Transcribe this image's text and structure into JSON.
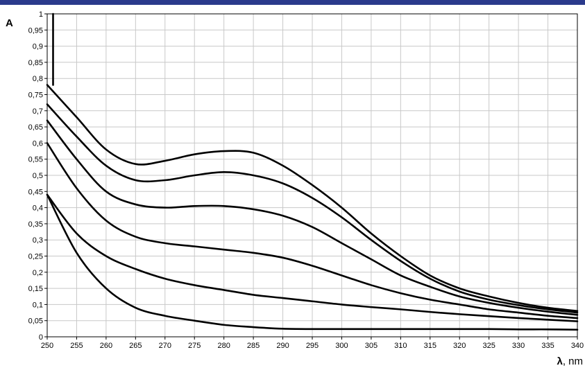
{
  "colors": {
    "top_bar": "#2b3a8c",
    "grid": "#c8c8c8",
    "line": "#000000",
    "background": "#ffffff"
  },
  "chart_data": {
    "type": "line",
    "title": "",
    "ylabel": "A",
    "xlabel_symbol": "λ",
    "xlabel_unit": ", nm",
    "xlim": [
      250,
      340
    ],
    "ylim": [
      0,
      1
    ],
    "grid": true,
    "legend": "none",
    "x_ticks": [
      "250",
      "255",
      "260",
      "265",
      "270",
      "275",
      "280",
      "285",
      "290",
      "295",
      "300",
      "305",
      "310",
      "315",
      "320",
      "325",
      "330",
      "335",
      "340"
    ],
    "y_ticks": [
      "0",
      "0,05",
      "0,1",
      "0,15",
      "0,2",
      "0,25",
      "0,3",
      "0,35",
      "0,4",
      "0,45",
      "0,5",
      "0,55",
      "0,6",
      "0,65",
      "0,7",
      "0,75",
      "0,8",
      "0,85",
      "0,9",
      "0,95",
      "1"
    ],
    "spike": {
      "x": 251,
      "y_from": 0.78,
      "y_to": 1.0
    },
    "x": [
      250,
      255,
      260,
      265,
      270,
      275,
      280,
      285,
      290,
      295,
      300,
      305,
      310,
      315,
      320,
      325,
      330,
      335,
      340
    ],
    "series": [
      {
        "values": [
          0.78,
          0.68,
          0.58,
          0.535,
          0.545,
          0.565,
          0.575,
          0.57,
          0.53,
          0.47,
          0.4,
          0.32,
          0.25,
          0.19,
          0.15,
          0.125,
          0.105,
          0.09,
          0.08
        ]
      },
      {
        "values": [
          0.72,
          0.62,
          0.53,
          0.485,
          0.485,
          0.5,
          0.51,
          0.5,
          0.475,
          0.43,
          0.37,
          0.3,
          0.235,
          0.18,
          0.14,
          0.115,
          0.098,
          0.085,
          0.075
        ]
      },
      {
        "values": [
          0.67,
          0.55,
          0.45,
          0.41,
          0.4,
          0.405,
          0.405,
          0.395,
          0.375,
          0.34,
          0.29,
          0.24,
          0.19,
          0.155,
          0.125,
          0.105,
          0.09,
          0.078,
          0.068
        ]
      },
      {
        "values": [
          0.6,
          0.46,
          0.36,
          0.31,
          0.29,
          0.28,
          0.27,
          0.26,
          0.245,
          0.22,
          0.19,
          0.16,
          0.135,
          0.115,
          0.1,
          0.085,
          0.075,
          0.065,
          0.058
        ]
      },
      {
        "values": [
          0.44,
          0.32,
          0.25,
          0.21,
          0.18,
          0.16,
          0.145,
          0.13,
          0.12,
          0.11,
          0.1,
          0.092,
          0.085,
          0.077,
          0.07,
          0.064,
          0.058,
          0.053,
          0.048
        ]
      },
      {
        "values": [
          0.44,
          0.26,
          0.15,
          0.09,
          0.065,
          0.05,
          0.037,
          0.03,
          0.025,
          0.024,
          0.024,
          0.024,
          0.024,
          0.024,
          0.024,
          0.024,
          0.023,
          0.023,
          0.022
        ]
      }
    ]
  }
}
